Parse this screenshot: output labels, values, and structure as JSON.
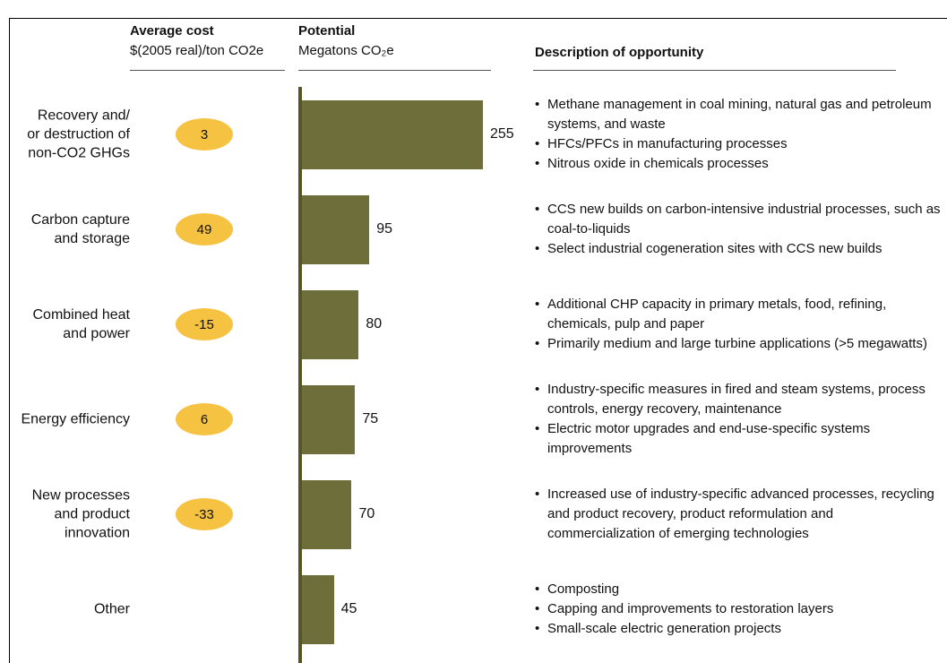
{
  "chart_data": {
    "type": "bar",
    "orientation": "horizontal",
    "cost_header": "Average cost",
    "cost_unit": "$(2005 real)/ton CO2e",
    "value_header": "Potential",
    "value_unit": "Megatons CO₂e",
    "description_header": "Description of opportunity",
    "categories": [
      "Recovery and/\nor destruction of\nnon-CO2 GHGs",
      "Carbon capture\nand storage",
      "Combined heat\nand power",
      "Energy efficiency",
      "New processes\nand product\ninnovation",
      "Other"
    ],
    "values": [
      255,
      95,
      80,
      75,
      70,
      45
    ],
    "color": "#6e6e3a",
    "costs": [
      3,
      49,
      -15,
      6,
      -33,
      null
    ],
    "cost_color": "#f5c242",
    "descriptions": [
      [
        "Methane management in coal mining, natural gas and petroleum systems, and waste",
        "HFCs/PFCs in manufacturing processes",
        "Nitrous oxide in chemicals processes"
      ],
      [
        "CCS new builds on carbon-intensive industrial processes, such as coal-to-liquids",
        "Select industrial cogeneration sites with CCS new builds"
      ],
      [
        "Additional CHP capacity in primary metals, food, refining, chemicals, pulp and paper",
        "Primarily medium and large turbine applications (>5 megawatts)"
      ],
      [
        "Industry-specific measures in fired and steam systems, process controls, energy recovery, maintenance",
        "Electric motor upgrades and end-use-specific systems improvements"
      ],
      [
        "Increased use of industry-specific advanced processes, recycling and product recovery, product reformulation and commercialization of emerging technologies"
      ],
      [
        "Composting",
        "Capping and improvements to restoration layers",
        "Small-scale electric generation projects"
      ]
    ]
  }
}
